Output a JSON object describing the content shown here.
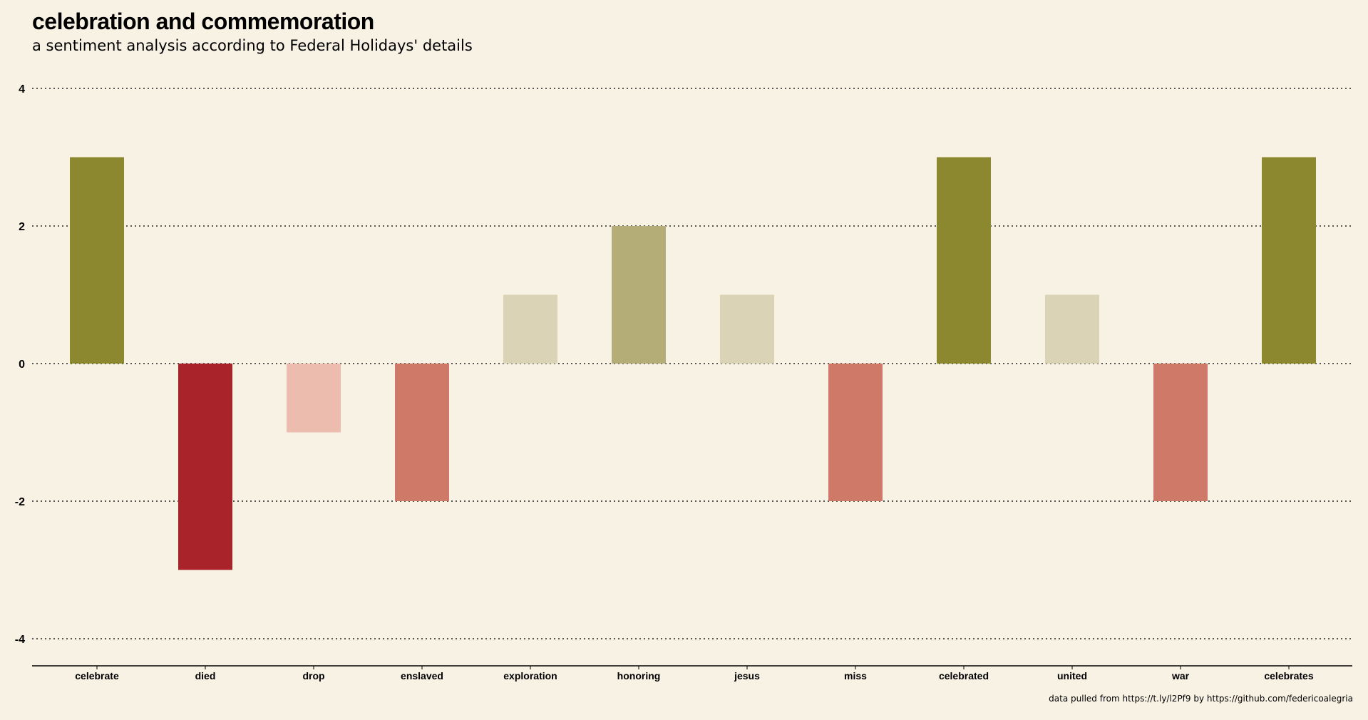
{
  "chart_data": {
    "type": "bar",
    "title": "celebration and commemoration",
    "subtitle": "a sentiment analysis according to Federal Holidays' details",
    "caption": "data pulled from https://t.ly/l2Pf9 by https://github.com/federicoalegria",
    "xlabel": "",
    "ylabel": "",
    "ylim": [
      -4.4,
      4.4
    ],
    "yticks": [
      4,
      2,
      0,
      -2,
      -4
    ],
    "grid": true,
    "grid_style": "dotted",
    "legend": "none",
    "categories": [
      "celebrate",
      "died",
      "drop",
      "enslaved",
      "exploration",
      "honoring",
      "jesus",
      "miss",
      "celebrated",
      "united",
      "war",
      "celebrates"
    ],
    "values": [
      3,
      -3,
      -1,
      -2,
      1,
      2,
      1,
      -2,
      3,
      1,
      -2,
      3
    ],
    "colors": {
      "3": "#8b882f",
      "2": "#b5ad78",
      "1": "#dbd3b5",
      "-1": "#ecbcae",
      "-2": "#cf7a68",
      "-3": "#a9232a"
    }
  }
}
